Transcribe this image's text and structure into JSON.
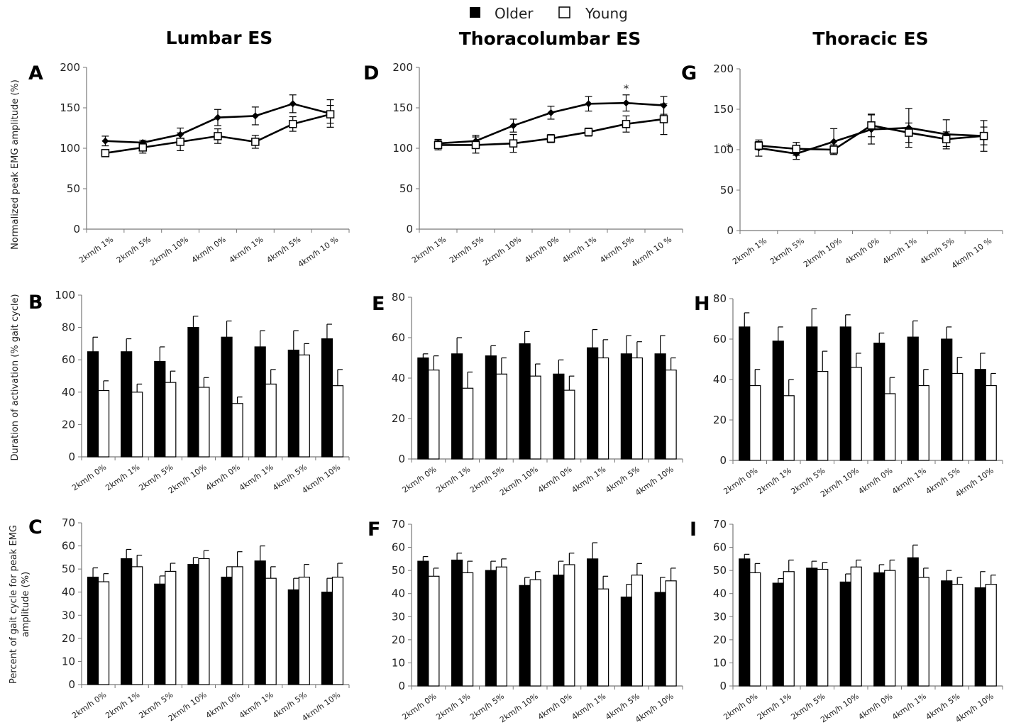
{
  "figure": {
    "legend": {
      "older": "Older",
      "young": "Young"
    },
    "columns": [
      "Lumbar ES",
      "Thoracolumbar ES",
      "Thoracic ES"
    ],
    "row_ylabels": [
      [
        "Normalized peak EMG amplitude (%)"
      ],
      [
        "Duration of activation (% gait cycle)"
      ],
      [
        "Percent of gait cycle for peak EMG",
        "amplitude (%)"
      ]
    ],
    "colors": {
      "older": "#000000",
      "young": "#ffffff",
      "axis": "#777777"
    }
  },
  "chart_data": [
    {
      "panel": "A",
      "type": "line",
      "categories": [
        "2km/h 1%",
        "2km/h 5%",
        "2km/h 10%",
        "4km/h 0%",
        "4km/h 1%",
        "4km/h 5%",
        "4km/h 10 %"
      ],
      "ylim": [
        0,
        200
      ],
      "yticks": [
        0,
        50,
        100,
        150,
        200
      ],
      "series": [
        {
          "name": "Older",
          "values": [
            109,
            107,
            117,
            138,
            140,
            155,
            143
          ],
          "errors": [
            6,
            3,
            8,
            10,
            11,
            11,
            17
          ]
        },
        {
          "name": "Young",
          "values": [
            94,
            101,
            108,
            115,
            108,
            130,
            142
          ],
          "errors": [
            4,
            7,
            11,
            9,
            8,
            9,
            11
          ]
        }
      ],
      "annotations": []
    },
    {
      "panel": "D",
      "type": "line",
      "categories": [
        "2km/h 1%",
        "2km/h 5%",
        "2km/h 10%",
        "4km/h 0%",
        "4km/h 1%",
        "4km/h 5%",
        "4km/h 10 %"
      ],
      "ylim": [
        0,
        200
      ],
      "yticks": [
        0,
        50,
        100,
        150,
        200
      ],
      "series": [
        {
          "name": "Older",
          "values": [
            106,
            109,
            128,
            144,
            155,
            156,
            153
          ],
          "errors": [
            5,
            7,
            8,
            8,
            9,
            10,
            11
          ]
        },
        {
          "name": "Young",
          "values": [
            104,
            104,
            106,
            112,
            120,
            130,
            136
          ],
          "errors": [
            6,
            10,
            11,
            5,
            5,
            10,
            19
          ]
        }
      ],
      "annotations": [
        {
          "category_index": 5,
          "text": "*"
        }
      ]
    },
    {
      "panel": "G",
      "type": "line",
      "categories": [
        "2km/h 1%",
        "2km/h 5%",
        "2km/h 10%",
        "4km/h 0%",
        "4km/h 1%",
        "4km/h 5%",
        "4km/h 10 %"
      ],
      "ylim": [
        0,
        200
      ],
      "yticks": [
        0,
        50,
        100,
        150,
        200
      ],
      "series": [
        {
          "name": "Older",
          "values": [
            102,
            95,
            110,
            125,
            127,
            119,
            117
          ],
          "errors": [
            10,
            7,
            16,
            18,
            24,
            18,
            19
          ]
        },
        {
          "name": "Young",
          "values": [
            105,
            101,
            100,
            130,
            121,
            113,
            117
          ],
          "errors": [
            5,
            8,
            6,
            14,
            12,
            9,
            11
          ]
        }
      ],
      "annotations": [
        {
          "category_index": 0,
          "text": "*"
        }
      ]
    },
    {
      "panel": "B",
      "type": "bar",
      "categories": [
        "2km/h 0%",
        "2km/h 1%",
        "2km/h 5%",
        "2km/h 10%",
        "4km/h 0%",
        "4km/h 1%",
        "4km/h 5%",
        "4km/h 10%"
      ],
      "ylim": [
        0,
        100
      ],
      "yticks": [
        0,
        20,
        40,
        60,
        80,
        100
      ],
      "series": [
        {
          "name": "Older",
          "values": [
            65,
            65,
            59,
            80,
            74,
            68,
            66,
            73
          ],
          "errors": [
            9,
            8,
            9,
            7,
            10,
            10,
            12,
            9
          ]
        },
        {
          "name": "Young",
          "values": [
            41,
            40,
            46,
            43,
            33,
            45,
            63,
            44
          ],
          "errors": [
            6,
            5,
            7,
            6,
            4,
            9,
            7,
            10
          ]
        }
      ]
    },
    {
      "panel": "E",
      "type": "bar",
      "categories": [
        "2km/h 0%",
        "2km/h 1%",
        "2km/h 5%",
        "2km/h 10%",
        "4km/h 0%",
        "4km/h 1%",
        "4km/h 5%",
        "4km/h 10%"
      ],
      "ylim": [
        0,
        80
      ],
      "yticks": [
        0,
        20,
        40,
        60,
        80
      ],
      "series": [
        {
          "name": "Older",
          "values": [
            50,
            52,
            51,
            57,
            42,
            55,
            52,
            52
          ],
          "errors": [
            2,
            8,
            5,
            6,
            7,
            9,
            9,
            9
          ]
        },
        {
          "name": "Young",
          "values": [
            44,
            35,
            42,
            41,
            34,
            50,
            50,
            44
          ],
          "errors": [
            7,
            8,
            8,
            6,
            7,
            9,
            8,
            6
          ]
        }
      ]
    },
    {
      "panel": "H",
      "type": "bar",
      "categories": [
        "2km/h 0%",
        "2km/h 1%",
        "2km/h 5%",
        "2km/h 10%",
        "4km/h 0%",
        "4km/h 1%",
        "4km/h 5%",
        "4km/h 10%"
      ],
      "ylim": [
        0,
        80
      ],
      "yticks": [
        0,
        20,
        40,
        60,
        80
      ],
      "series": [
        {
          "name": "Older",
          "values": [
            66,
            59,
            66,
            66,
            58,
            61,
            60,
            45
          ],
          "errors": [
            7,
            7,
            9,
            6,
            5,
            8,
            6,
            8
          ]
        },
        {
          "name": "Young",
          "values": [
            37,
            32,
            44,
            46,
            33,
            37,
            43,
            37
          ],
          "errors": [
            8,
            8,
            10,
            7,
            8,
            8,
            8,
            6
          ]
        }
      ]
    },
    {
      "panel": "C",
      "type": "bar",
      "categories": [
        "2km/h 0%",
        "2km/h 1%",
        "2km/h 5%",
        "2km/h 10%",
        "4km/h 0%",
        "4km/h 1%",
        "4km/h 5%",
        "4km/h 10%"
      ],
      "ylim": [
        0,
        70
      ],
      "yticks": [
        0,
        10,
        20,
        30,
        40,
        50,
        60,
        70
      ],
      "series": [
        {
          "name": "Older",
          "values": [
            46.5,
            54.5,
            43.5,
            52,
            46.5,
            53.5,
            41,
            40
          ],
          "errors": [
            4,
            4,
            3.5,
            3,
            4.5,
            6.5,
            5,
            6
          ]
        },
        {
          "name": "Young",
          "values": [
            44.5,
            51,
            49,
            54.5,
            51,
            46,
            46.5,
            46.5
          ],
          "errors": [
            3.5,
            5,
            3.5,
            3.5,
            6.5,
            5,
            5.5,
            6
          ]
        }
      ]
    },
    {
      "panel": "F",
      "type": "bar",
      "categories": [
        "2km/h 0%",
        "2km/h 1%",
        "2km/h 5%",
        "2km/h 10%",
        "4km/h 0%",
        "4km/h 1%",
        "4km/h 5%",
        "4km/h 10%"
      ],
      "ylim": [
        0,
        70
      ],
      "yticks": [
        0,
        10,
        20,
        30,
        40,
        50,
        60,
        70
      ],
      "series": [
        {
          "name": "Older",
          "values": [
            54,
            54.5,
            50,
            43.5,
            48,
            55,
            38.5,
            40.5
          ],
          "errors": [
            2,
            3,
            4,
            3.5,
            6,
            7,
            5.5,
            6.5
          ]
        },
        {
          "name": "Young",
          "values": [
            47.5,
            49,
            51.5,
            46,
            52.5,
            42,
            48,
            45.5
          ],
          "errors": [
            3.5,
            5,
            3.5,
            3.5,
            5,
            5.5,
            5,
            5.5
          ]
        }
      ]
    },
    {
      "panel": "I",
      "type": "bar",
      "categories": [
        "2km/h 0%",
        "2km/h 1%",
        "2km/h 5%",
        "2km/h 10%",
        "4km/h 0%",
        "4km/h 1%",
        "4km/h 5%",
        "4km/h 10%"
      ],
      "ylim": [
        0,
        70
      ],
      "yticks": [
        0,
        10,
        20,
        30,
        40,
        50,
        60,
        70
      ],
      "series": [
        {
          "name": "Older",
          "values": [
            55,
            44.5,
            51,
            45,
            49,
            55.5,
            45.5,
            42.5
          ],
          "errors": [
            2,
            2,
            3,
            3.5,
            3.5,
            5.5,
            4.5,
            7
          ]
        },
        {
          "name": "Young",
          "values": [
            49,
            49.5,
            50.5,
            51.5,
            50,
            47,
            44,
            44
          ],
          "errors": [
            4,
            5,
            3,
            3,
            4.5,
            4,
            3,
            4
          ]
        }
      ]
    }
  ]
}
